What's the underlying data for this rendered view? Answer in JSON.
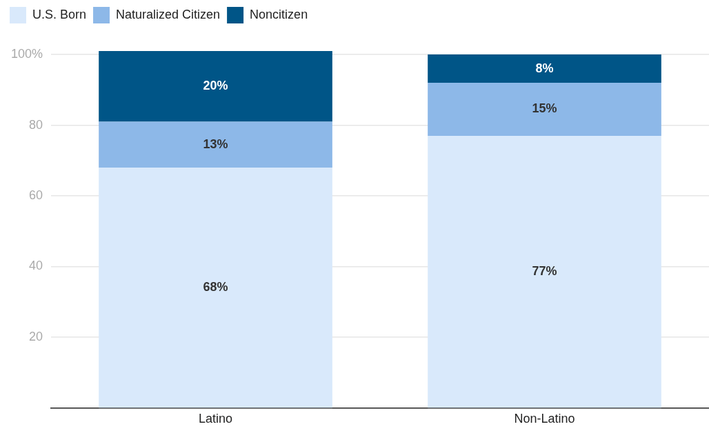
{
  "chart_data": {
    "type": "bar",
    "stacked": true,
    "categories": [
      "Latino",
      "Non-Latino"
    ],
    "series": [
      {
        "name": "U.S. Born",
        "color": "#d9e9fb",
        "values": [
          68,
          77
        ],
        "value_labels": [
          "68%",
          "77%"
        ]
      },
      {
        "name": "Naturalized Citizen",
        "color": "#8db8e8",
        "values": [
          13,
          15
        ],
        "value_labels": [
          "13%",
          "15%"
        ]
      },
      {
        "name": "Noncitizen",
        "color": "#005587",
        "values": [
          20,
          8
        ],
        "value_labels": [
          "20%",
          "8%"
        ]
      }
    ],
    "ylim": [
      0,
      101
    ],
    "yticks": [
      20,
      40,
      60,
      80,
      {
        "value": 100,
        "label": "100%"
      }
    ],
    "grid": "y",
    "legend": "top left"
  }
}
